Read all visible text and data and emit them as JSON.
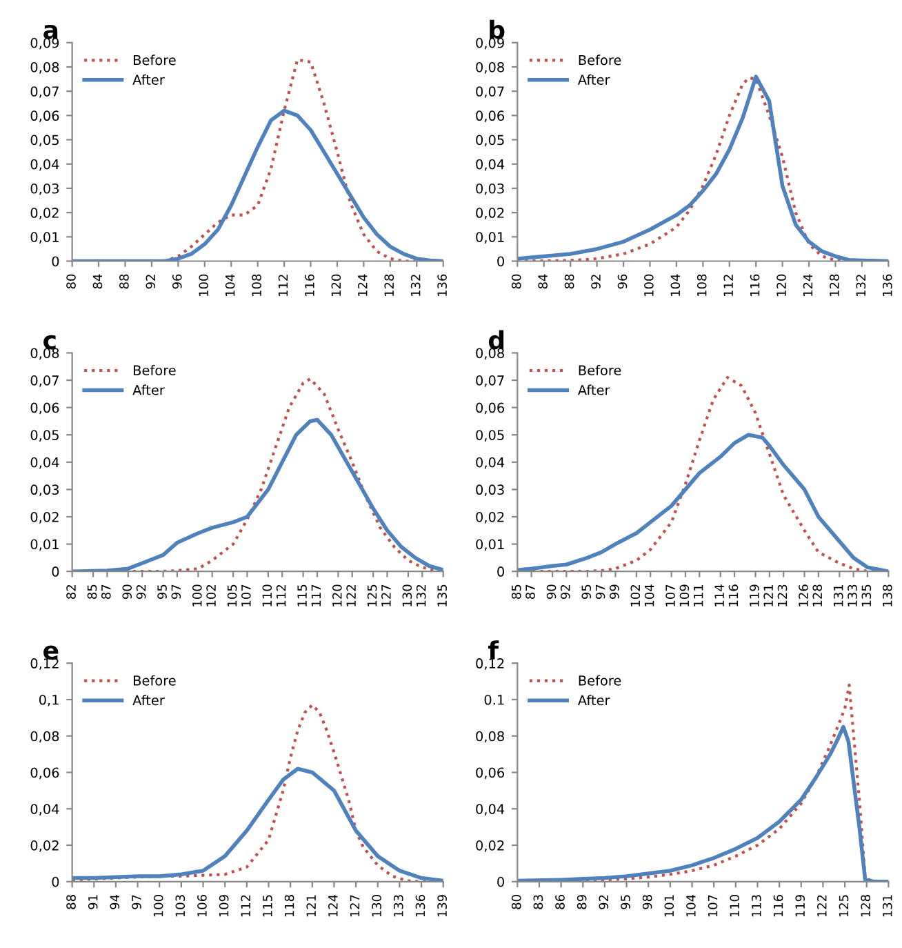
{
  "chart_data": [
    {
      "type": "line",
      "title": "a",
      "legend": "top left",
      "xlim": [
        80,
        136
      ],
      "xticks": [
        80,
        84,
        88,
        92,
        96,
        100,
        104,
        108,
        112,
        116,
        120,
        124,
        128,
        132,
        136
      ],
      "ylim": [
        0,
        0.09
      ],
      "yticks": [
        0,
        {
          "value": 0.01,
          "label": "0,01"
        },
        {
          "value": 0.02,
          "label": "0,02"
        },
        {
          "value": 0.03,
          "label": "0,03"
        },
        {
          "value": 0.04,
          "label": "0,04"
        },
        {
          "value": 0.05,
          "label": "0,05"
        },
        {
          "value": 0.06,
          "label": "0,06"
        },
        {
          "value": 0.07,
          "label": "0,07"
        },
        {
          "value": 0.08,
          "label": "0,08"
        },
        {
          "value": 0.09,
          "label": "0,09"
        }
      ],
      "series": [
        {
          "name": "Before",
          "color": "#c0504d",
          "line_style": "dotted",
          "x": [
            80,
            90,
            94,
            96,
            98,
            100,
            102,
            104,
            106,
            108,
            110,
            112,
            114,
            116,
            118,
            120,
            122,
            124,
            126,
            128,
            130,
            136
          ],
          "values": [
            0,
            0,
            0,
            0.002,
            0.006,
            0.011,
            0.016,
            0.019,
            0.019,
            0.023,
            0.038,
            0.062,
            0.083,
            0.082,
            0.065,
            0.045,
            0.024,
            0.011,
            0.004,
            0.001,
            0,
            0
          ]
        },
        {
          "name": "After",
          "color": "#4f81bd",
          "line_style": "solid",
          "x": [
            80,
            90,
            94,
            96,
            98,
            100,
            102,
            104,
            106,
            108,
            110,
            112,
            114,
            116,
            118,
            120,
            122,
            124,
            126,
            128,
            130,
            132,
            134,
            136
          ],
          "values": [
            0,
            0,
            0,
            0.001,
            0.003,
            0.007,
            0.013,
            0.023,
            0.035,
            0.047,
            0.058,
            0.062,
            0.06,
            0.054,
            0.045,
            0.036,
            0.027,
            0.018,
            0.011,
            0.006,
            0.003,
            0.001,
            0.0003,
            0
          ]
        }
      ]
    },
    {
      "type": "line",
      "title": "b",
      "legend": "top left",
      "xlim": [
        80,
        136
      ],
      "xticks": [
        80,
        84,
        88,
        92,
        96,
        100,
        104,
        108,
        112,
        116,
        120,
        124,
        128,
        132,
        136
      ],
      "ylim": [
        0,
        0.09
      ],
      "yticks": [
        0,
        {
          "value": 0.01,
          "label": "0,01"
        },
        {
          "value": 0.02,
          "label": "0,02"
        },
        {
          "value": 0.03,
          "label": "0,03"
        },
        {
          "value": 0.04,
          "label": "0,04"
        },
        {
          "value": 0.05,
          "label": "0,05"
        },
        {
          "value": 0.06,
          "label": "0,06"
        },
        {
          "value": 0.07,
          "label": "0,07"
        },
        {
          "value": 0.08,
          "label": "0,08"
        },
        {
          "value": 0.09,
          "label": "0,09"
        }
      ],
      "series": [
        {
          "name": "Before",
          "color": "#c0504d",
          "line_style": "dotted",
          "x": [
            80,
            88,
            92,
            96,
            100,
            104,
            106,
            108,
            110,
            112,
            114,
            115,
            116,
            118,
            120,
            122,
            124,
            126,
            128,
            130,
            136
          ],
          "values": [
            0,
            0.0003,
            0.001,
            0.003,
            0.007,
            0.014,
            0.021,
            0.031,
            0.044,
            0.06,
            0.073,
            0.0755,
            0.075,
            0.06,
            0.043,
            0.02,
            0.007,
            0.002,
            0.0003,
            0,
            0
          ]
        },
        {
          "name": "After",
          "color": "#4f81bd",
          "line_style": "solid",
          "x": [
            80,
            84,
            88,
            92,
            96,
            100,
            104,
            106,
            108,
            110,
            112,
            114,
            116,
            118,
            120,
            122,
            124,
            126,
            128,
            130,
            132,
            136
          ],
          "values": [
            0.001,
            0.002,
            0.003,
            0.005,
            0.008,
            0.013,
            0.019,
            0.023,
            0.029,
            0.036,
            0.046,
            0.059,
            0.076,
            0.066,
            0.031,
            0.015,
            0.008,
            0.004,
            0.002,
            0.0005,
            0.0003,
            0
          ]
        }
      ]
    },
    {
      "type": "line",
      "title": "c",
      "legend": "top left",
      "xlim": [
        82,
        135
      ],
      "xticks": [
        82,
        85,
        87,
        90,
        92,
        95,
        97,
        100,
        102,
        105,
        107,
        110,
        112,
        115,
        117,
        120,
        122,
        125,
        127,
        130,
        132,
        135
      ],
      "ylim": [
        0,
        0.08
      ],
      "yticks": [
        0,
        {
          "value": 0.01,
          "label": "0,01"
        },
        {
          "value": 0.02,
          "label": "0,02"
        },
        {
          "value": 0.03,
          "label": "0,03"
        },
        {
          "value": 0.04,
          "label": "0,04"
        },
        {
          "value": 0.05,
          "label": "0,05"
        },
        {
          "value": 0.06,
          "label": "0,06"
        },
        {
          "value": 0.07,
          "label": "0,07"
        },
        {
          "value": 0.08,
          "label": "0,08"
        }
      ],
      "series": [
        {
          "name": "Before",
          "color": "#c0504d",
          "line_style": "dotted",
          "x": [
            82,
            95,
            97,
            100,
            102,
            105,
            107,
            109,
            111,
            113,
            115,
            116,
            118,
            120,
            122,
            124,
            126,
            128,
            130,
            132,
            134,
            135
          ],
          "values": [
            0,
            0,
            0.0003,
            0.001,
            0.004,
            0.01,
            0.019,
            0.03,
            0.045,
            0.06,
            0.069,
            0.0705,
            0.065,
            0.052,
            0.04,
            0.027,
            0.016,
            0.009,
            0.004,
            0.0015,
            0.0003,
            0
          ]
        },
        {
          "name": "After",
          "color": "#4f81bd",
          "line_style": "solid",
          "x": [
            82,
            87,
            90,
            92,
            95,
            97,
            100,
            102,
            105,
            107,
            110,
            112,
            114,
            116,
            117,
            119,
            121,
            123,
            125,
            127,
            129,
            131,
            133,
            135
          ],
          "values": [
            0,
            0.0003,
            0.001,
            0.003,
            0.006,
            0.0105,
            0.014,
            0.016,
            0.018,
            0.02,
            0.03,
            0.04,
            0.05,
            0.055,
            0.0555,
            0.05,
            0.041,
            0.032,
            0.023,
            0.015,
            0.009,
            0.005,
            0.002,
            0.0005
          ]
        }
      ]
    },
    {
      "type": "line",
      "title": "d",
      "legend": "top left",
      "xlim": [
        85,
        138
      ],
      "xticks": [
        85,
        87,
        90,
        92,
        95,
        97,
        99,
        102,
        104,
        107,
        109,
        111,
        114,
        116,
        119,
        121,
        123,
        126,
        128,
        131,
        133,
        135,
        138
      ],
      "ylim": [
        0,
        0.08
      ],
      "yticks": [
        0,
        {
          "value": 0.01,
          "label": "0,01"
        },
        {
          "value": 0.02,
          "label": "0,02"
        },
        {
          "value": 0.03,
          "label": "0,03"
        },
        {
          "value": 0.04,
          "label": "0,04"
        },
        {
          "value": 0.05,
          "label": "0,05"
        },
        {
          "value": 0.06,
          "label": "0,06"
        },
        {
          "value": 0.07,
          "label": "0,07"
        },
        {
          "value": 0.08,
          "label": "0,08"
        }
      ],
      "series": [
        {
          "name": "Before",
          "color": "#c0504d",
          "line_style": "dotted",
          "x": [
            85,
            95,
            97,
            99,
            102,
            104,
            107,
            109,
            111,
            113,
            115,
            117,
            119,
            121,
            123,
            126,
            128,
            131,
            133,
            135,
            138
          ],
          "values": [
            0,
            0,
            0.0003,
            0.001,
            0.004,
            0.008,
            0.018,
            0.032,
            0.048,
            0.063,
            0.071,
            0.068,
            0.058,
            0.043,
            0.028,
            0.015,
            0.007,
            0.003,
            0.001,
            0,
            0
          ]
        },
        {
          "name": "After",
          "color": "#4f81bd",
          "line_style": "solid",
          "x": [
            85,
            87,
            90,
            92,
            95,
            97,
            99,
            102,
            104,
            107,
            109,
            111,
            114,
            116,
            118,
            120,
            121,
            123,
            126,
            128,
            131,
            133,
            135,
            138
          ],
          "values": [
            0.0005,
            0.001,
            0.002,
            0.0025,
            0.005,
            0.007,
            0.01,
            0.014,
            0.018,
            0.024,
            0.03,
            0.036,
            0.042,
            0.047,
            0.05,
            0.049,
            0.046,
            0.039,
            0.03,
            0.02,
            0.011,
            0.005,
            0.0015,
            0
          ]
        }
      ]
    },
    {
      "type": "line",
      "title": "e",
      "legend": "top left",
      "xlim": [
        88,
        139
      ],
      "xticks": [
        88,
        91,
        94,
        97,
        100,
        103,
        106,
        109,
        112,
        115,
        118,
        121,
        124,
        127,
        130,
        133,
        136,
        139
      ],
      "ylim": [
        0,
        0.12
      ],
      "yticks": [
        0,
        {
          "value": 0.02,
          "label": "0,02"
        },
        {
          "value": 0.04,
          "label": "0,04"
        },
        {
          "value": 0.06,
          "label": "0,06"
        },
        {
          "value": 0.08,
          "label": "0,08"
        },
        {
          "value": 0.1,
          "label": "0,1"
        },
        {
          "value": 0.12,
          "label": "0,12"
        }
      ],
      "series": [
        {
          "name": "Before",
          "color": "#c0504d",
          "line_style": "dotted",
          "x": [
            88,
            94,
            100,
            103,
            106,
            109,
            112,
            115,
            117,
            118,
            119,
            120,
            121,
            122,
            123,
            124,
            125,
            126,
            127,
            128,
            130,
            132,
            134,
            136,
            139
          ],
          "values": [
            0.001,
            0.002,
            0.003,
            0.003,
            0.0035,
            0.004,
            0.008,
            0.023,
            0.05,
            0.068,
            0.083,
            0.093,
            0.097,
            0.093,
            0.083,
            0.071,
            0.058,
            0.045,
            0.028,
            0.019,
            0.009,
            0.003,
            0.0005,
            0,
            0
          ]
        },
        {
          "name": "After",
          "color": "#4f81bd",
          "line_style": "solid",
          "x": [
            88,
            91,
            94,
            97,
            100,
            103,
            106,
            109,
            112,
            115,
            117,
            119,
            121,
            124,
            127,
            130,
            133,
            136,
            139
          ],
          "values": [
            0.002,
            0.002,
            0.0025,
            0.003,
            0.003,
            0.004,
            0.006,
            0.014,
            0.028,
            0.045,
            0.056,
            0.062,
            0.06,
            0.05,
            0.028,
            0.014,
            0.006,
            0.002,
            0.0005
          ]
        }
      ]
    },
    {
      "type": "line",
      "title": "f",
      "legend": "top left",
      "xlim": [
        80,
        131
      ],
      "xticks": [
        80,
        83,
        86,
        89,
        92,
        95,
        98,
        101,
        104,
        107,
        110,
        113,
        116,
        119,
        122,
        125,
        128,
        131
      ],
      "ylim": [
        0,
        0.12
      ],
      "yticks": [
        0,
        {
          "value": 0.02,
          "label": "0,02"
        },
        {
          "value": 0.04,
          "label": "0,04"
        },
        {
          "value": 0.06,
          "label": "0,06"
        },
        {
          "value": 0.08,
          "label": "0,08"
        },
        0.1,
        {
          "value": 0.12,
          "label": "0,12"
        }
      ],
      "series": [
        {
          "name": "Before",
          "color": "#c0504d",
          "line_style": "dotted",
          "x": [
            80,
            89,
            92,
            95,
            98,
            101,
            104,
            107,
            110,
            113,
            116,
            119,
            121,
            123,
            125,
            125.6,
            127,
            127.8,
            129,
            131
          ],
          "values": [
            0,
            0.0005,
            0.001,
            0.0015,
            0.0025,
            0.004,
            0.006,
            0.009,
            0.014,
            0.02,
            0.029,
            0.043,
            0.057,
            0.075,
            0.095,
            0.108,
            0.045,
            0.002,
            0,
            0
          ]
        },
        {
          "name": "After",
          "color": "#4f81bd",
          "line_style": "solid",
          "x": [
            80,
            86,
            89,
            92,
            95,
            98,
            101,
            104,
            107,
            110,
            113,
            116,
            119,
            121,
            123,
            124,
            124.8,
            125.5,
            127,
            127.8,
            129,
            131
          ],
          "values": [
            0.0005,
            0.001,
            0.0015,
            0.002,
            0.003,
            0.0045,
            0.006,
            0.009,
            0.013,
            0.018,
            0.024,
            0.033,
            0.045,
            0.057,
            0.07,
            0.078,
            0.085,
            0.077,
            0.03,
            0.001,
            0,
            0
          ]
        }
      ]
    }
  ]
}
